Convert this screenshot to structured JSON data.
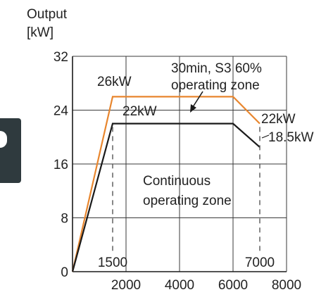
{
  "chart_data": {
    "type": "line",
    "ylabel_line1": "Output",
    "ylabel_line2": "[kW]",
    "xlim": [
      0,
      8000
    ],
    "ylim": [
      0,
      32
    ],
    "xticks": [
      "2000",
      "4000",
      "6000",
      "8000"
    ],
    "xtick_values": [
      2000,
      4000,
      6000,
      8000
    ],
    "yticks": [
      "0",
      "8",
      "16",
      "24",
      "32"
    ],
    "ytick_values": [
      0,
      8,
      16,
      24,
      32
    ],
    "grid": true,
    "series": [
      {
        "color": "#e8862e",
        "x": [
          0,
          1500,
          6000,
          7000
        ],
        "y": [
          0,
          26,
          26,
          22
        ]
      },
      {
        "color": "#1a1a1a",
        "x": [
          0,
          1500,
          6000,
          7000
        ],
        "y": [
          0,
          22,
          22,
          18.5
        ]
      }
    ],
    "vertical_markers": [
      {
        "x": 1500,
        "label": "1500"
      },
      {
        "x": 7000,
        "label": "7000"
      }
    ],
    "annotations": {
      "s3_line1": "30min, S3 60%",
      "s3_line2": "operating zone",
      "peak_26": "26kW",
      "peak_22": "22kW",
      "end_22": "22kW",
      "end_185": "18.5kW",
      "cont_line1": "Continuous",
      "cont_line2": "operating zone"
    }
  }
}
